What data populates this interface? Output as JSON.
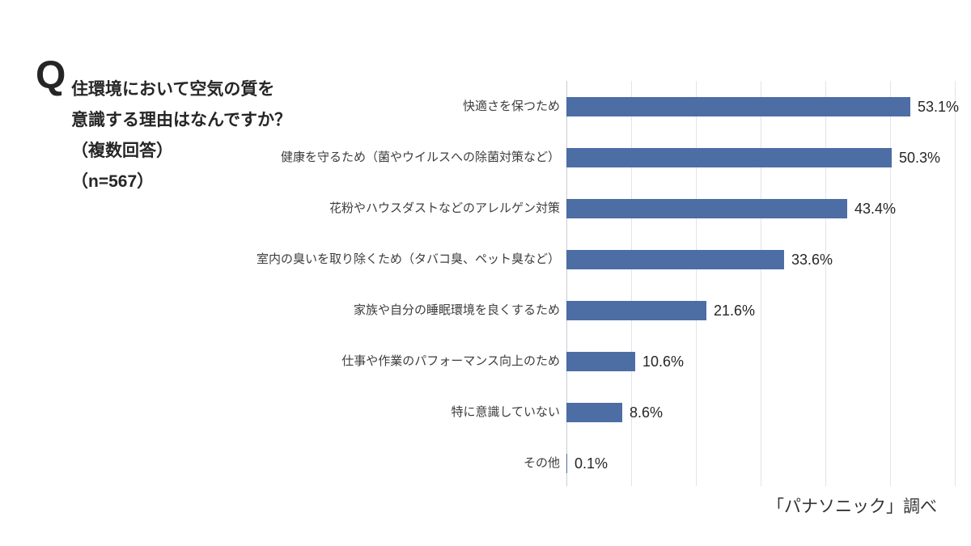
{
  "title": {
    "q_mark": "Q",
    "lines": [
      "住環境において空気の質を",
      "意識する理由はなんですか？",
      "（複数回答）",
      "（n=567）"
    ]
  },
  "chart_data": {
    "type": "bar",
    "orientation": "horizontal",
    "title": "住環境において空気の質を意識する理由はなんですか？（複数回答）（n=567）",
    "categories": [
      "快適さを保つため",
      "健康を守るため（菌やウイルスへの除菌対策など）",
      "花粉やハウスダストなどのアレルゲン対策",
      "室内の臭いを取り除くため（タバコ臭、ペット臭など）",
      "家族や自分の睡眠環境を良くするため",
      "仕事や作業のパフォーマンス向上のため",
      "特に意識していない",
      "その他"
    ],
    "values": [
      53.1,
      50.3,
      43.4,
      33.6,
      21.6,
      10.6,
      8.6,
      0.1
    ],
    "value_labels": [
      "53.1%",
      "50.3%",
      "43.4%",
      "33.6%",
      "21.6%",
      "10.6%",
      "8.6%",
      "0.1%"
    ],
    "xlabel": "",
    "ylabel": "",
    "xlim": [
      0,
      60
    ],
    "grid": true,
    "gridline_interval": 10,
    "legend": "none",
    "source_note": "「パナソニック」調べ",
    "colors": {
      "bar": "#4d6da5",
      "gridline": "#e0e4ea",
      "axis_line": "#c7ccd4",
      "category_text": "#3d3d3d",
      "value_text": "#262626",
      "title_text": "#262626",
      "source_text": "#333333",
      "background": "#ffffff"
    }
  }
}
